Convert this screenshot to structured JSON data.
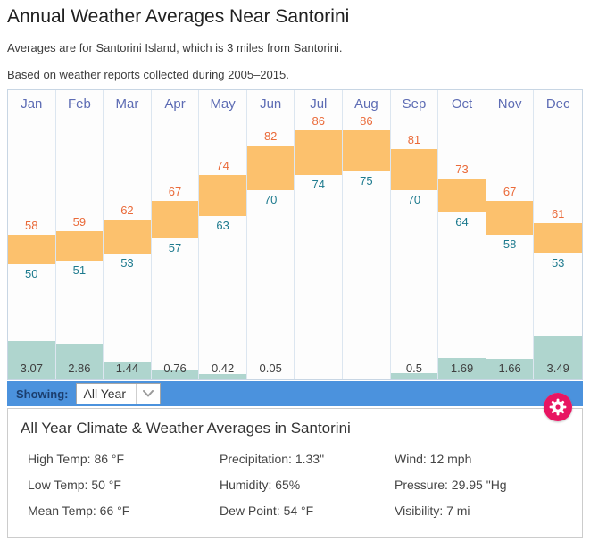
{
  "page": {
    "title": "Annual Weather Averages Near Santorini",
    "subtitle1": "Averages are for Santorini Island, which is 3 miles from Santorini.",
    "subtitle2": "Based on weather reports collected during 2005–2015."
  },
  "chart_data": {
    "type": "bar",
    "title": "Annual Weather Averages Near Santorini",
    "categories": [
      "Jan",
      "Feb",
      "Mar",
      "Apr",
      "May",
      "Jun",
      "Jul",
      "Aug",
      "Sep",
      "Oct",
      "Nov",
      "Dec"
    ],
    "series": [
      {
        "name": "High Temp (°F)",
        "values": [
          58,
          59,
          62,
          67,
          74,
          82,
          86,
          86,
          81,
          73,
          67,
          61
        ]
      },
      {
        "name": "Low Temp (°F)",
        "values": [
          50,
          51,
          53,
          57,
          63,
          70,
          74,
          75,
          70,
          64,
          58,
          53
        ]
      },
      {
        "name": "Precipitation (inches)",
        "values": [
          3.07,
          2.86,
          1.44,
          0.76,
          0.42,
          0.05,
          0,
          0,
          0.5,
          1.69,
          1.66,
          3.49
        ]
      }
    ],
    "precip_labels": [
      "3.07",
      "2.86",
      "1.44",
      "0.76",
      "0.42",
      "0.05",
      "",
      "",
      "0.5",
      "1.69",
      "1.66",
      "3.49"
    ],
    "legend_position": "none",
    "grid": "column-dividers-only",
    "temp_bar_spans_low_to_high": true,
    "precip_bars_anchored_bottom": true
  },
  "colors": {
    "temp_bar": "#fcc16d",
    "precip_bar": "#afd5ce",
    "high_label": "#ea6a39",
    "low_label": "#1d7a8e",
    "month_label": "#5d6cb4",
    "precip_label": "#3f3f3f",
    "showing_bar_bg": "#4b92dd",
    "showing_label": "#1b3e6e",
    "gear_button": "#e81562",
    "gear_glyph": "#ffffff"
  },
  "controls": {
    "showing_label": "Showing:",
    "selected_option": "All Year"
  },
  "summary": {
    "heading": "All Year Climate & Weather Averages in Santorini",
    "stats": [
      {
        "label": "High Temp",
        "value": "86 °F"
      },
      {
        "label": "Precipitation",
        "value": "1.33\""
      },
      {
        "label": "Wind",
        "value": "12 mph"
      },
      {
        "label": "Low Temp",
        "value": "50 °F"
      },
      {
        "label": "Humidity",
        "value": "65%"
      },
      {
        "label": "Pressure",
        "value": "29.95 \"Hg"
      },
      {
        "label": "Mean Temp",
        "value": "66 °F"
      },
      {
        "label": "Dew Point",
        "value": "54 °F"
      },
      {
        "label": "Visibility",
        "value": "7 mi"
      }
    ]
  }
}
